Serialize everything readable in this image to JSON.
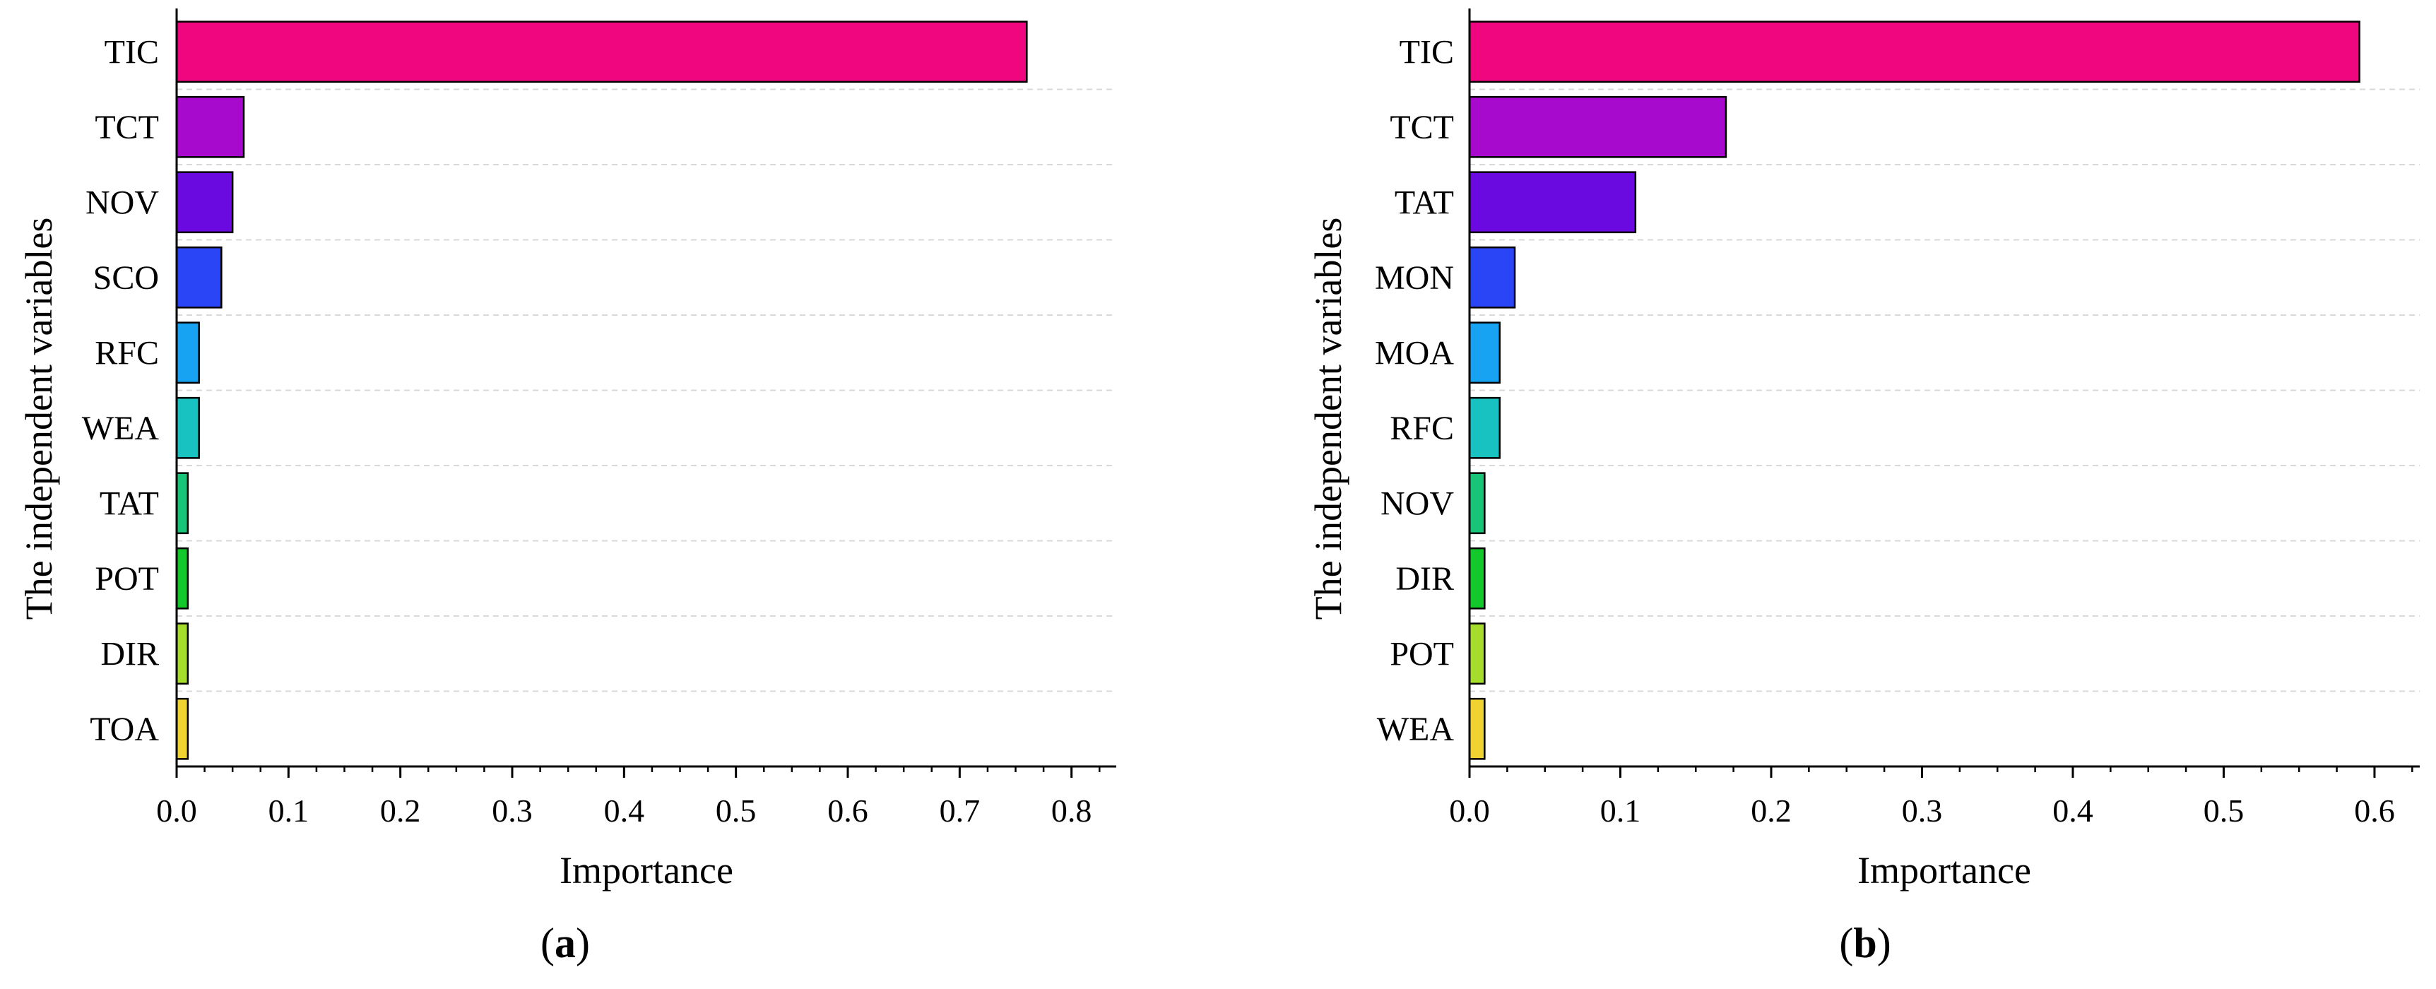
{
  "chart_data": [
    {
      "type": "bar",
      "orientation": "horizontal",
      "panel_label": "a",
      "xlabel": "Importance",
      "ylabel": "The independent variables",
      "xlim": [
        0,
        0.84
      ],
      "xticks": [
        0.0,
        0.1,
        0.2,
        0.3,
        0.4,
        0.5,
        0.6,
        0.7,
        0.8
      ],
      "grid": "horizontal dashed",
      "categories": [
        "TIC",
        "TCT",
        "NOV",
        "SCO",
        "RFC",
        "WEA",
        "TAT",
        "POT",
        "DIR",
        "TOA"
      ],
      "values": [
        0.76,
        0.06,
        0.05,
        0.04,
        0.02,
        0.02,
        0.01,
        0.01,
        0.01,
        0.01
      ],
      "colors": [
        "#f0077f",
        "#a70acc",
        "#6a0ae0",
        "#2a45f5",
        "#17a2f2",
        "#17c2c0",
        "#18c478",
        "#13c82a",
        "#a6dd2c",
        "#f0d230"
      ]
    },
    {
      "type": "bar",
      "orientation": "horizontal",
      "panel_label": "b",
      "xlabel": "Importance",
      "ylabel": "The independent variables",
      "xlim": [
        0,
        0.63
      ],
      "xticks": [
        0.0,
        0.1,
        0.2,
        0.3,
        0.4,
        0.5,
        0.6
      ],
      "grid": "horizontal dashed",
      "categories": [
        "TIC",
        "TCT",
        "TAT",
        "MON",
        "MOA",
        "RFC",
        "NOV",
        "DIR",
        "POT",
        "WEA"
      ],
      "values": [
        0.59,
        0.17,
        0.11,
        0.03,
        0.02,
        0.02,
        0.01,
        0.01,
        0.01,
        0.01
      ],
      "colors": [
        "#f0077f",
        "#a70acc",
        "#6a0ae0",
        "#2a45f5",
        "#17a2f2",
        "#17c2c0",
        "#18c478",
        "#13c82a",
        "#a6dd2c",
        "#f0d230"
      ]
    }
  ]
}
